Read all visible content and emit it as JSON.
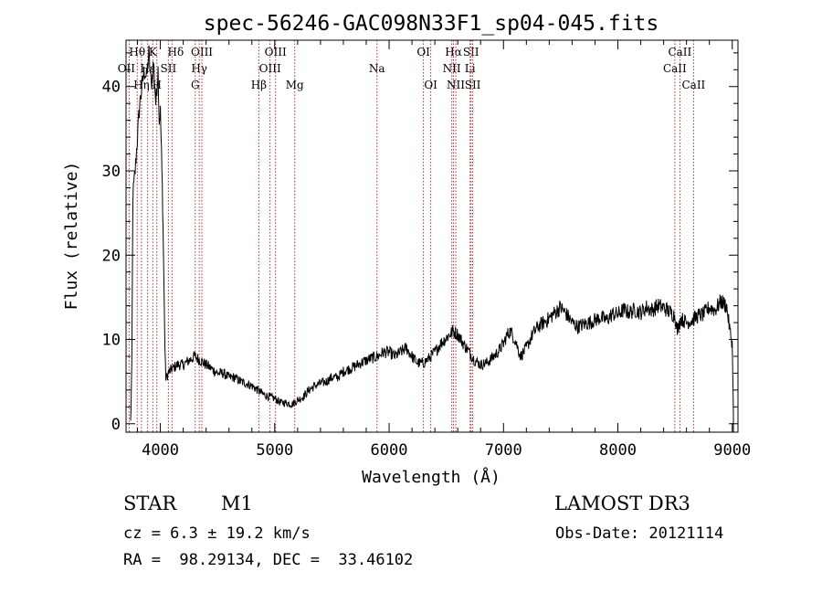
{
  "chart_data": {
    "type": "line",
    "title": "spec-56246-GAC098N33F1_sp04-045.fits",
    "xlabel": "Wavelength (Å)",
    "ylabel": "Flux (relative)",
    "xlim": [
      3700,
      9050
    ],
    "ylim": [
      -1,
      45.5
    ],
    "xticks": [
      4000,
      5000,
      6000,
      7000,
      8000,
      9000
    ],
    "xtick_labels": [
      "4000",
      "5000",
      "6000",
      "7000",
      "8000",
      "9000"
    ],
    "yticks": [
      0,
      10,
      20,
      30,
      40
    ],
    "ytick_labels": [
      "0",
      "10",
      "20",
      "30",
      "40"
    ],
    "grid": false,
    "series": [
      {
        "name": "spectrum",
        "x": [
          3740,
          3750,
          3760,
          3780,
          3800,
          3820,
          3840,
          3860,
          3880,
          3900,
          3920,
          3940,
          3960,
          3970,
          3980,
          3990,
          4000,
          4010,
          4020,
          4030,
          4040,
          4045,
          4055,
          4070,
          4100,
          4150,
          4200,
          4250,
          4300,
          4350,
          4400,
          4450,
          4500,
          4550,
          4600,
          4650,
          4700,
          4750,
          4800,
          4850,
          4900,
          4950,
          5000,
          5050,
          5100,
          5150,
          5200,
          5250,
          5300,
          5350,
          5400,
          5450,
          5500,
          5550,
          5600,
          5650,
          5700,
          5750,
          5800,
          5850,
          5900,
          5950,
          6000,
          6050,
          6100,
          6150,
          6200,
          6250,
          6300,
          6350,
          6400,
          6450,
          6500,
          6530,
          6560,
          6600,
          6650,
          6700,
          6750,
          6800,
          6850,
          6900,
          6950,
          7000,
          7030,
          7060,
          7100,
          7150,
          7200,
          7250,
          7300,
          7350,
          7400,
          7450,
          7500,
          7550,
          7600,
          7650,
          7700,
          7750,
          7800,
          7850,
          7900,
          7950,
          8000,
          8050,
          8100,
          8150,
          8200,
          8250,
          8300,
          8350,
          8400,
          8450,
          8500,
          8520,
          8550,
          8600,
          8650,
          8700,
          8750,
          8800,
          8850,
          8900,
          8950,
          8980,
          9000,
          9010
        ],
        "y": [
          0,
          6,
          27,
          30,
          34,
          38,
          40,
          42,
          41,
          44,
          40,
          43,
          38,
          40,
          42,
          36,
          37,
          32,
          26,
          18,
          9,
          6,
          5.5,
          6,
          6.5,
          7,
          7,
          7.5,
          8,
          7.5,
          7,
          6.5,
          6,
          6,
          5.5,
          5.5,
          5,
          4.8,
          4.5,
          4,
          3.5,
          3.2,
          3,
          2.5,
          2.5,
          2.3,
          2.8,
          3.2,
          4,
          4.5,
          4.8,
          5,
          5.5,
          5.5,
          6.2,
          6.5,
          6.8,
          7.2,
          7.5,
          7.8,
          8,
          8.5,
          8.5,
          8,
          8.5,
          9,
          8,
          7.2,
          7.2,
          7.8,
          8.5,
          9.5,
          10.2,
          10.6,
          11,
          10.6,
          9.5,
          8.5,
          7.5,
          7,
          7.2,
          7.8,
          8.5,
          9.5,
          10.5,
          11,
          10,
          8,
          9,
          10.5,
          11.5,
          12,
          12.5,
          13.2,
          13.8,
          13,
          12,
          11.5,
          11.8,
          12,
          12.3,
          12.6,
          12.3,
          13,
          13,
          13.5,
          13.2,
          13.5,
          13.2,
          13.8,
          13.5,
          14,
          13.8,
          13.3,
          12.8,
          11,
          12.5,
          12,
          12.3,
          12.8,
          13,
          13.8,
          13.5,
          14.5,
          14,
          11,
          9.5,
          1
        ]
      }
    ],
    "line_markers": [
      {
        "label": "Hθ",
        "x": 3798,
        "row": 0,
        "dx": 0
      },
      {
        "label": "OII",
        "x": 3727,
        "row": 1,
        "dx": -3
      },
      {
        "label": "Hη",
        "x": 3835,
        "row": 2,
        "dx": 0
      },
      {
        "label": "K",
        "x": 3934,
        "row": 0,
        "dx": 0
      },
      {
        "label": "Hε",
        "x": 3889,
        "row": 1,
        "dx": 0
      },
      {
        "label": "H",
        "x": 3969,
        "row": 2,
        "dx": 0
      },
      {
        "label": "Hδ",
        "x": 4102,
        "row": 0,
        "dx": 4
      },
      {
        "label": "SII",
        "x": 4070,
        "row": 1,
        "dx": 0
      },
      {
        "label": "OIII",
        "x": 4363,
        "row": 0,
        "dx": 0
      },
      {
        "label": "Hγ",
        "x": 4340,
        "row": 1,
        "dx": 0
      },
      {
        "label": "G",
        "x": 4305,
        "row": 2,
        "dx": 0
      },
      {
        "label": "OIII",
        "x": 5007,
        "row": 0,
        "dx": 0
      },
      {
        "label": "OIII",
        "x": 4959,
        "row": 1,
        "dx": 0
      },
      {
        "label": "Hβ",
        "x": 4861,
        "row": 2,
        "dx": 0
      },
      {
        "label": "Mg",
        "x": 5175,
        "row": 2,
        "dx": 0
      },
      {
        "label": "Na",
        "x": 5894,
        "row": 1,
        "dx": 0
      },
      {
        "label": "OI",
        "x": 6300,
        "row": 0,
        "dx": 0
      },
      {
        "label": "OI",
        "x": 6364,
        "row": 2,
        "dx": 0
      },
      {
        "label": "Hα",
        "x": 6563,
        "row": 0,
        "dx": 0
      },
      {
        "label": "SII",
        "x": 6716,
        "row": 0,
        "dx": 0
      },
      {
        "label": "NII",
        "x": 6548,
        "row": 1,
        "dx": 0
      },
      {
        "label": "Li",
        "x": 6708,
        "row": 1,
        "dx": 0
      },
      {
        "label": "NII",
        "x": 6583,
        "row": 2,
        "dx": 0
      },
      {
        "label": "SII",
        "x": 6731,
        "row": 2,
        "dx": 0
      },
      {
        "label": "CaII",
        "x": 8542,
        "row": 0,
        "dx": 0
      },
      {
        "label": "CaII",
        "x": 8498,
        "row": 1,
        "dx": 0
      },
      {
        "label": "CaII",
        "x": 8662,
        "row": 2,
        "dx": 0
      }
    ]
  },
  "info": {
    "class": "STAR",
    "subclass": "M1",
    "survey": "LAMOST DR3",
    "cz": "cz = 6.3 ± 19.2 km/s",
    "obs_date": "Obs-Date: 20121114",
    "coords": "RA =  98.29134, DEC =  33.46102"
  }
}
